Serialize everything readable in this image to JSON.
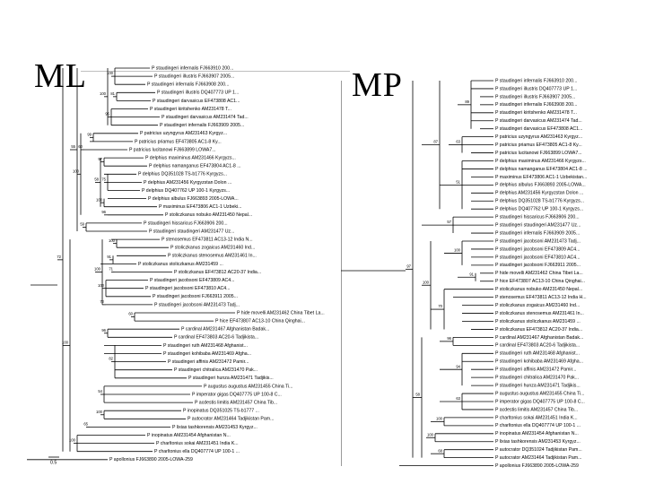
{
  "slide": {
    "ml_heading": "ML",
    "mp_heading": "MP"
  },
  "ml_tree": {
    "scale_label": "0.5",
    "taxa": [
      "P staudingeri infernalis FJ663910 200...",
      "P staudingeri illustris FJ663907 2005...",
      "P staudingeri infernalis FJ663908 200...",
      "P staudingeri illustris DQ407773 UP 1...",
      "P staudingeri darvasicus EF473808 AC1...",
      "P staudingeri kiritshenko AM231478 T...",
      "P staudingeri darvasicus AM231474 Tad...",
      "P staudingeri infernalis FJ663909 2005...",
      "P patricius uzyngyrus AM231463 Kyrgyz...",
      "P patricius priamus EF473805 AC1-8 Ky...",
      "P patricius lucitanowi FJ663899 LOWA7...",
      "P delphius maximinus AM231466 Kyrgyzs...",
      "P delphius namanganus EF473804 AC1-8 ...",
      "P delphius DQ351028 TS-b1776 Kyrgyzs...",
      "P delphius AM231456 Kyrgyzstan Dolon ...",
      "P delphius DQ407762 UP 100-1 Kyrgyzs...",
      "P delphius albulus FJ663893 2005-LOWA...",
      "P maximinus EF473806 AC1-1 Uzbeki...",
      "P stoliczkanus nobuko AM231450 Nepal...",
      "P staudingeri hissaricus FJ663906 200...",
      "P staudingeri staudingeri AM231477 Uz...",
      "P stenosemus EF473811 AC13-12 India N...",
      "P stoliczkanus zogaicus AM231460 Ind...",
      "P stoliczkanus stenosemus AM231461 In...",
      "P stoliczkanus stoliczkanus AM231459 ...",
      "P stoliczkanus EF473812 AC20-37 India...",
      "P staudingeri jacobsoni EF473809 AC4...",
      "P staudingeri jacobsoni EF473810 AC4...",
      "P staudingeri jacobsoni FJ663911 2005...",
      "P staudingeri jacobsoni AM231473 Tadj...",
      "P hide movelli AM231462 China Tibet La...",
      "P hice EF473807 AC13-10 China Qinghai...",
      "P cardinal AM231467 Afghanistan Badak...",
      "P cardinal EF473803 AC20-6 Tadjikista...",
      "P staudingeri ruth AM231468 Afghanist...",
      "P staudingeri kohibaba AM231469 Afgha...",
      "P staudingeri affinis AM231472 Pamir...",
      "P staudingeri chitralica AM231470 Pak...",
      "P staudingeri hunza AM231471 Tadjikis...",
      "P augustus augustus AM231455 China Ti...",
      "P imperator gigas DQ407775 UP 100-8 C...",
      "P acdestis limitis AM231457 China Tib...",
      "P inopinatus DQ351025 TS-b1777 ...",
      "P autocrator AM231464 Tadjikistan Pam...",
      "P lixias tashkorensis AM231453 Kyrgyz...",
      "P inopinatus AM231454 Afghanistan N...",
      "P charltonius sokai AM231451 India K...",
      "P charltonius ella DQ407774 UP 100-1 ...",
      "P apollonius FJ663890 2005-LOWA-259"
    ],
    "support": [
      "100",
      "81",
      "95",
      "100",
      "99",
      "60",
      "97",
      "75",
      "100",
      "58",
      "96",
      "100",
      "59",
      "55",
      "100",
      "91",
      "71",
      "100",
      "72",
      "100",
      "60",
      "96",
      "82",
      "54",
      "100",
      "65",
      "100",
      "100",
      "72"
    ]
  },
  "mp_tree": {
    "taxa": [
      "P staudingeri infernalis FJ663910 200...",
      "P staudingeri illustris DQ407773 UP 1...",
      "P staudingeri illustris FJ663907 2005...",
      "P staudingeri infernalis FJ663908 200...",
      "P staudingeri kiritshenko AM231478 T...",
      "P staudingeri darvasicus AM231474 Tad...",
      "P staudingeri darvasicus EF473808 AC1...",
      "P patricius uzyngyrus AM231463 Kyrgyz...",
      "P patricius priamus EF473805 AC1-8 Ky...",
      "P patricius lucitanowi FJ663899 LOWA7...",
      "P delphius maximinus AM231466 Kyrgyzs...",
      "P delphius namanganus EF473804 AC1-8 ...",
      "P maximinus EF473806 AC1-1 Uzbekistan...",
      "P delphius albulus FJ663893 2005-LOWA...",
      "P delphius AM231456 Kyrgyzstan Dolon ...",
      "P delphius DQ351028 TS-b1776 Kyrgyzs...",
      "P delphius DQ407762 UP 100-1 Kyrgyzs...",
      "P staudingeri hissaricus FJ663906 200...",
      "P staudingeri staudingeri AM231477 Uz...",
      "P staudingeri infernalis FJ663909 2005...",
      "P staudingeri jacobsoni AM231473 Tadj...",
      "P staudingeri jacobsoni EF473809 AC4...",
      "P staudingeri jacobsoni EF473810 AC4...",
      "P staudingeri jacobsoni FJ663911 2005...",
      "P hide movelli AM231462 China Tibet La...",
      "P hice EF473807 AC13-10 China Qinghai...",
      "P stoliczkanus nobuko AM231450 Nepal...",
      "P stenosemus EF473811 AC13-12 India H...",
      "P stoliczkanus zogaicus AM231460 Ind...",
      "P stoliczkanus stenosemus AM231461 In...",
      "P stoliczkanus stoliczkanus AM231459 ...",
      "P stoliczkanus EF473812 AC20-37 India...",
      "P cardinal AM231467 Afghanistan Badak...",
      "P cardinal EF473803 AC20-6 Tadjikista...",
      "P staudingeri ruth AM231468 Afghanist...",
      "P staudingeri kohibaba AM231469 Afgha...",
      "P staudingeri affinis AM231472 Pamir...",
      "P staudingeri chitralica AM231470 Pak...",
      "P staudingeri hunza AM231471 Tadjikis...",
      "P augustus augustus AM231455 China Ti...",
      "P imperator gigas DQ407775 UP 100-8 C...",
      "P acdestis limitis AM231457 China Tib...",
      "P charltonius sokai AM231451 India K...",
      "P charltonius ella DQ407774 UP 100-1 ...",
      "P inopinatus AM231454 Afghanistan N...",
      "P lixias tashkorensis AM231453 Kyrgyz...",
      "P autocrator DQ351024 Tadjikistan Pam...",
      "P autocrator AM231464 Tadjikistan Pam...",
      "P apollonius FJ663890 2005-LOWA-259"
    ],
    "support": [
      "89",
      "63",
      "51",
      "87",
      "57",
      "100",
      "91",
      "70",
      "100",
      "96",
      "94",
      "63",
      "100",
      "100",
      "68",
      "58",
      "97",
      "63",
      "62",
      "100",
      "75",
      "69",
      "96",
      "100",
      "93",
      "66"
    ]
  }
}
